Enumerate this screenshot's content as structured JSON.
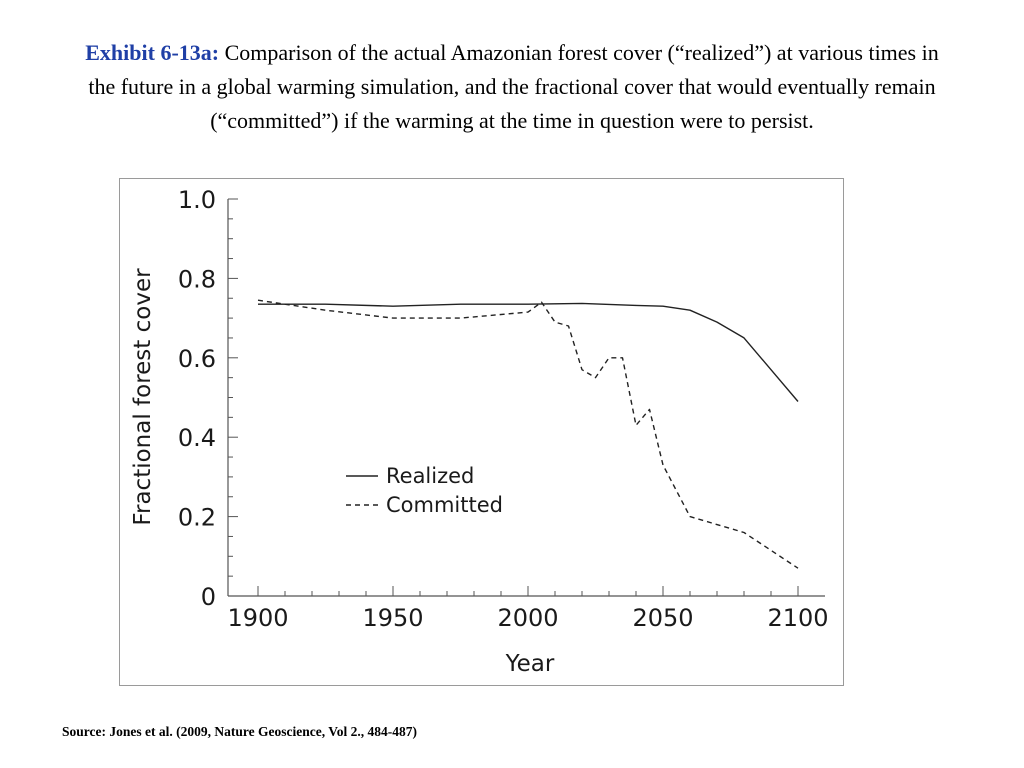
{
  "slide": {
    "title_label": "Exhibit 6-13a:",
    "title_text": "Comparison of the actual Amazonian forest cover (“realized”) at various times in the future in a global warming simulation, and the fractional cover that would eventually remain (“committed”) if the warming at the time in question were to persist.",
    "source": "Source: Jones et al. (2009, Nature Geoscience, Vol 2., 484-487)",
    "label_color": "#1f3fa6"
  },
  "chart_data": {
    "type": "line",
    "title": "",
    "xlabel": "Year",
    "ylabel": "Fractional forest cover",
    "xlim": [
      1900,
      2100
    ],
    "ylim": [
      0,
      1.0
    ],
    "x_ticks": [
      "1900",
      "1950",
      "2000",
      "2050",
      "2100"
    ],
    "y_ticks": [
      "0",
      "0.2",
      "0.4",
      "0.6",
      "0.8",
      "1.0"
    ],
    "grid": false,
    "legend_position": "lower-left",
    "series": [
      {
        "name": "Realized",
        "style": "solid",
        "color": "#222222",
        "points": [
          [
            1900,
            0.735
          ],
          [
            1925,
            0.735
          ],
          [
            1950,
            0.73
          ],
          [
            1975,
            0.735
          ],
          [
            2000,
            0.735
          ],
          [
            2020,
            0.737
          ],
          [
            2040,
            0.732
          ],
          [
            2050,
            0.73
          ],
          [
            2060,
            0.72
          ],
          [
            2070,
            0.69
          ],
          [
            2080,
            0.65
          ],
          [
            2090,
            0.57
          ],
          [
            2100,
            0.49
          ]
        ]
      },
      {
        "name": "Committed",
        "style": "dashed",
        "color": "#222222",
        "points": [
          [
            1900,
            0.745
          ],
          [
            1925,
            0.72
          ],
          [
            1950,
            0.7
          ],
          [
            1975,
            0.7
          ],
          [
            2000,
            0.715
          ],
          [
            2005,
            0.74
          ],
          [
            2010,
            0.69
          ],
          [
            2015,
            0.68
          ],
          [
            2020,
            0.57
          ],
          [
            2025,
            0.55
          ],
          [
            2030,
            0.6
          ],
          [
            2035,
            0.6
          ],
          [
            2040,
            0.43
          ],
          [
            2045,
            0.47
          ],
          [
            2050,
            0.33
          ],
          [
            2060,
            0.2
          ],
          [
            2080,
            0.16
          ],
          [
            2100,
            0.07
          ]
        ]
      }
    ]
  }
}
